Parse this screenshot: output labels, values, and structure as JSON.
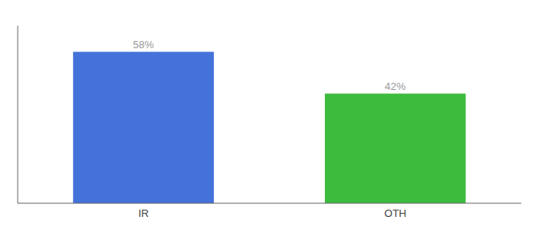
{
  "chart_data": {
    "type": "bar",
    "categories": [
      "IR",
      "OTH"
    ],
    "values": [
      58,
      42
    ],
    "colors": [
      "#4472db",
      "#3dbb3d"
    ],
    "value_labels": [
      "58%",
      "42%"
    ],
    "ylim": [
      0,
      68
    ],
    "data_labels": true,
    "tick_labels": "x",
    "grid": false
  }
}
